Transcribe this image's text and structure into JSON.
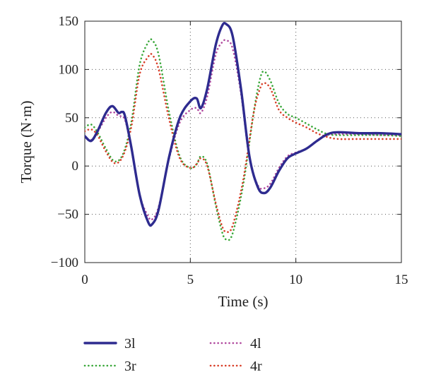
{
  "chart_data": {
    "type": "line",
    "title": "",
    "xlabel": "Time (s)",
    "ylabel": "Torque (N·m)",
    "xlim": [
      0,
      15
    ],
    "ylim": [
      -100,
      150
    ],
    "xticks": [
      0,
      5,
      10,
      15
    ],
    "yticks": [
      -100,
      -50,
      0,
      50,
      100,
      150
    ],
    "xtick_labels": [
      "0",
      "5",
      "10",
      "15"
    ],
    "ytick_labels": [
      "−100",
      "−50",
      "0",
      "50",
      "100",
      "150"
    ],
    "grid": true,
    "legend_position": "bottom",
    "series": [
      {
        "name": "3l",
        "color": "#2e2b8f",
        "style": "solid",
        "x": [
          0,
          0.3,
          0.6,
          1.0,
          1.3,
          1.6,
          1.75,
          1.9,
          2.2,
          2.6,
          3.0,
          3.2,
          3.5,
          4.0,
          4.5,
          5.0,
          5.3,
          5.5,
          5.8,
          6.2,
          6.5,
          6.7,
          7.0,
          7.4,
          7.8,
          8.2,
          8.5,
          8.8,
          9.2,
          9.6,
          10.0,
          10.5,
          11.0,
          11.5,
          12.0,
          13.0,
          14.0,
          15.0
        ],
        "y": [
          31,
          26,
          36,
          55,
          62,
          55,
          56,
          52,
          20,
          -30,
          -58,
          -60,
          -45,
          10,
          50,
          67,
          70,
          60,
          80,
          125,
          145,
          147,
          135,
          80,
          10,
          -22,
          -28,
          -22,
          -5,
          8,
          13,
          18,
          26,
          33,
          35,
          34,
          34,
          33
        ]
      },
      {
        "name": "4l",
        "color": "#b0489e",
        "style": "dotted",
        "x": [
          0,
          0.3,
          0.6,
          1.0,
          1.3,
          1.6,
          1.9,
          2.2,
          2.6,
          3.0,
          3.2,
          3.5,
          4.0,
          4.5,
          5.0,
          5.3,
          5.5,
          5.8,
          6.2,
          6.5,
          6.7,
          7.0,
          7.4,
          7.8,
          8.2,
          8.5,
          8.8,
          9.2,
          9.6,
          10.0,
          10.5,
          11.0,
          11.5,
          12.0,
          13.0,
          14.0,
          15.0
        ],
        "y": [
          30,
          27,
          35,
          50,
          56,
          52,
          48,
          18,
          -30,
          -52,
          -55,
          -42,
          8,
          45,
          58,
          60,
          55,
          72,
          115,
          128,
          130,
          122,
          75,
          8,
          -20,
          -23,
          -18,
          -2,
          10,
          14,
          18,
          26,
          32,
          33,
          33,
          32,
          32
        ]
      },
      {
        "name": "3r",
        "color": "#3aa83a",
        "style": "dotted",
        "x": [
          0,
          0.3,
          0.6,
          1.0,
          1.4,
          1.8,
          2.2,
          2.6,
          3.0,
          3.2,
          3.5,
          4.0,
          4.5,
          5.0,
          5.3,
          5.5,
          5.8,
          6.2,
          6.5,
          6.7,
          7.0,
          7.5,
          8.0,
          8.3,
          8.5,
          8.8,
          9.2,
          9.6,
          10.0,
          10.5,
          11.0,
          11.5,
          12.0,
          13.0,
          14.0,
          15.0
        ],
        "y": [
          40,
          43,
          35,
          18,
          5,
          12,
          45,
          105,
          128,
          130,
          115,
          55,
          10,
          -2,
          2,
          10,
          2,
          -40,
          -68,
          -76,
          -70,
          -20,
          55,
          90,
          98,
          88,
          65,
          54,
          50,
          44,
          38,
          33,
          32,
          32,
          32,
          31
        ]
      },
      {
        "name": "4r",
        "color": "#d8402a",
        "style": "dotted",
        "x": [
          0,
          0.3,
          0.6,
          1.0,
          1.4,
          1.8,
          2.2,
          2.6,
          3.0,
          3.2,
          3.5,
          4.0,
          4.5,
          5.0,
          5.3,
          5.5,
          5.8,
          6.2,
          6.5,
          6.7,
          7.0,
          7.5,
          8.0,
          8.3,
          8.5,
          8.8,
          9.2,
          9.6,
          10.0,
          10.5,
          11.0,
          11.5,
          12.0,
          13.0,
          14.0,
          15.0
        ],
        "y": [
          36,
          38,
          32,
          15,
          3,
          10,
          40,
          95,
          113,
          115,
          100,
          48,
          8,
          -2,
          2,
          8,
          0,
          -38,
          -62,
          -68,
          -62,
          -15,
          55,
          80,
          86,
          80,
          58,
          50,
          45,
          40,
          34,
          30,
          28,
          28,
          28,
          28
        ]
      }
    ]
  }
}
